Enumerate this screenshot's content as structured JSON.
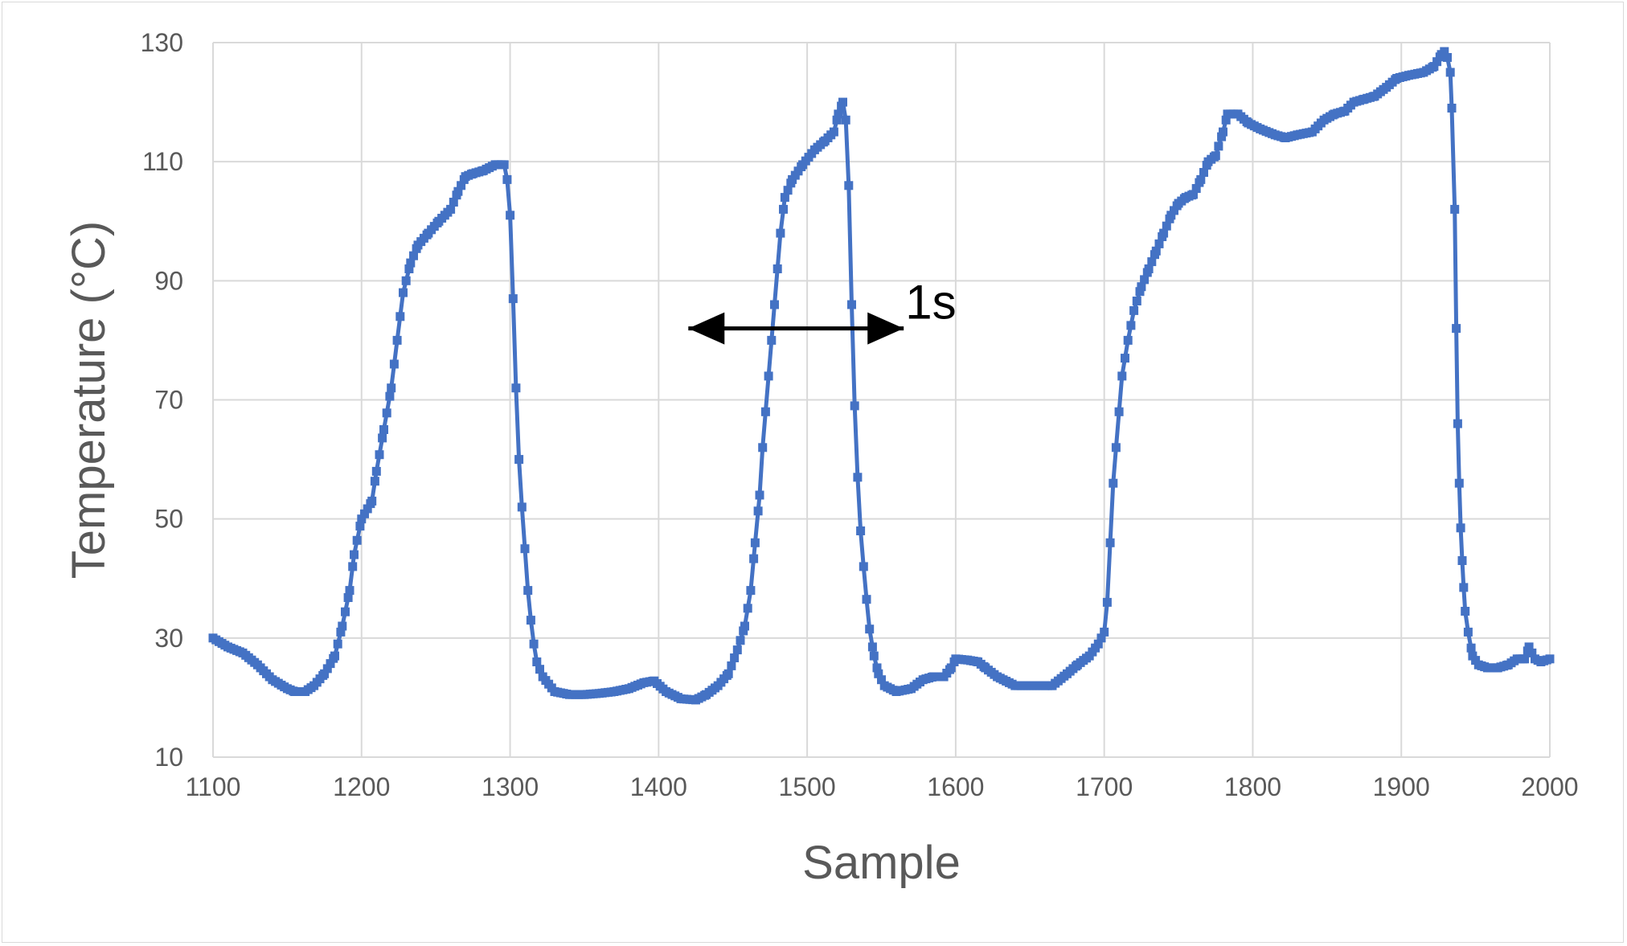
{
  "chart_data": {
    "type": "line",
    "xlabel": "Sample",
    "ylabel": "Temperature (°C)",
    "xlim": [
      1100,
      2000
    ],
    "ylim": [
      10,
      130
    ],
    "x_ticks": [
      "1100",
      "1200",
      "1300",
      "1400",
      "1500",
      "1600",
      "1700",
      "1800",
      "1900",
      "2000"
    ],
    "y_ticks": [
      "10",
      "30",
      "50",
      "70",
      "90",
      "110",
      "130"
    ],
    "grid": true,
    "legend": "none",
    "marker": "square",
    "series": [
      {
        "color": "#4472c4",
        "points": [
          [
            1100,
            30
          ],
          [
            1110,
            28.5
          ],
          [
            1120,
            27.5
          ],
          [
            1130,
            25.5
          ],
          [
            1140,
            23
          ],
          [
            1150,
            21.5
          ],
          [
            1155,
            21
          ],
          [
            1162,
            21
          ],
          [
            1168,
            22
          ],
          [
            1175,
            24
          ],
          [
            1182,
            27
          ],
          [
            1187,
            32
          ],
          [
            1192,
            38
          ],
          [
            1195,
            44
          ],
          [
            1200,
            50
          ],
          [
            1207,
            53
          ],
          [
            1210,
            58
          ],
          [
            1215,
            65
          ],
          [
            1220,
            72
          ],
          [
            1224,
            80
          ],
          [
            1228,
            88
          ],
          [
            1233,
            93
          ],
          [
            1238,
            96
          ],
          [
            1245,
            98
          ],
          [
            1252,
            100
          ],
          [
            1260,
            102
          ],
          [
            1265,
            105
          ],
          [
            1270,
            107.5
          ],
          [
            1275,
            108
          ],
          [
            1282,
            108.5
          ],
          [
            1290,
            109.5
          ],
          [
            1296,
            109.5
          ],
          [
            1298,
            107
          ],
          [
            1300,
            101
          ],
          [
            1302,
            87
          ],
          [
            1304,
            72
          ],
          [
            1306,
            60
          ],
          [
            1308,
            52
          ],
          [
            1310,
            45
          ],
          [
            1312,
            38
          ],
          [
            1314,
            33
          ],
          [
            1316,
            29
          ],
          [
            1318,
            26
          ],
          [
            1322,
            23.5
          ],
          [
            1330,
            21
          ],
          [
            1340,
            20.5
          ],
          [
            1350,
            20.5
          ],
          [
            1360,
            20.7
          ],
          [
            1370,
            21
          ],
          [
            1380,
            21.5
          ],
          [
            1390,
            22.5
          ],
          [
            1397,
            22.8
          ],
          [
            1405,
            21
          ],
          [
            1415,
            19.8
          ],
          [
            1425,
            19.6
          ],
          [
            1432,
            20.5
          ],
          [
            1440,
            22
          ],
          [
            1447,
            24
          ],
          [
            1453,
            28
          ],
          [
            1458,
            32
          ],
          [
            1462,
            38
          ],
          [
            1465,
            46
          ],
          [
            1468,
            54
          ],
          [
            1470,
            62
          ],
          [
            1472,
            68
          ],
          [
            1474,
            74
          ],
          [
            1476,
            80
          ],
          [
            1478,
            86
          ],
          [
            1480,
            92
          ],
          [
            1482,
            98
          ],
          [
            1485,
            104
          ],
          [
            1490,
            107
          ],
          [
            1497,
            109.5
          ],
          [
            1505,
            112
          ],
          [
            1512,
            113.5
          ],
          [
            1518,
            115
          ],
          [
            1521,
            118
          ],
          [
            1524,
            120
          ],
          [
            1526,
            117
          ],
          [
            1528,
            106
          ],
          [
            1530,
            86
          ],
          [
            1532,
            69
          ],
          [
            1534,
            57
          ],
          [
            1536,
            48
          ],
          [
            1538,
            42
          ],
          [
            1540,
            36.5
          ],
          [
            1542,
            31.5
          ],
          [
            1545,
            27
          ],
          [
            1548,
            24
          ],
          [
            1552,
            22
          ],
          [
            1560,
            21
          ],
          [
            1570,
            21.5
          ],
          [
            1578,
            23
          ],
          [
            1585,
            23.5
          ],
          [
            1592,
            23.5
          ],
          [
            1597,
            25
          ],
          [
            1600,
            26.5
          ],
          [
            1608,
            26.3
          ],
          [
            1615,
            26
          ],
          [
            1620,
            25
          ],
          [
            1628,
            23.5
          ],
          [
            1640,
            22
          ],
          [
            1652,
            22
          ],
          [
            1665,
            22
          ],
          [
            1675,
            24
          ],
          [
            1682,
            25.5
          ],
          [
            1690,
            27
          ],
          [
            1696,
            29
          ],
          [
            1700,
            31
          ],
          [
            1702,
            36
          ],
          [
            1704,
            46
          ],
          [
            1706,
            56
          ],
          [
            1708,
            62
          ],
          [
            1710,
            68
          ],
          [
            1712,
            74
          ],
          [
            1716,
            80
          ],
          [
            1720,
            85
          ],
          [
            1725,
            89
          ],
          [
            1730,
            92
          ],
          [
            1735,
            95
          ],
          [
            1740,
            98
          ],
          [
            1745,
            101
          ],
          [
            1750,
            103
          ],
          [
            1755,
            104
          ],
          [
            1760,
            104.5
          ],
          [
            1765,
            107
          ],
          [
            1770,
            110
          ],
          [
            1775,
            111
          ],
          [
            1780,
            115
          ],
          [
            1783,
            118
          ],
          [
            1790,
            118
          ],
          [
            1797,
            116.5
          ],
          [
            1805,
            115.5
          ],
          [
            1815,
            114.5
          ],
          [
            1822,
            114
          ],
          [
            1830,
            114.5
          ],
          [
            1840,
            115
          ],
          [
            1848,
            117
          ],
          [
            1855,
            118
          ],
          [
            1862,
            118.5
          ],
          [
            1868,
            120
          ],
          [
            1875,
            120.5
          ],
          [
            1882,
            121
          ],
          [
            1890,
            122.5
          ],
          [
            1897,
            124
          ],
          [
            1905,
            124.5
          ],
          [
            1915,
            125
          ],
          [
            1922,
            126
          ],
          [
            1927,
            128
          ],
          [
            1929,
            128.5
          ],
          [
            1931,
            127.5
          ],
          [
            1933,
            125
          ],
          [
            1934,
            119
          ],
          [
            1936,
            102
          ],
          [
            1937,
            82
          ],
          [
            1938,
            66
          ],
          [
            1939,
            56
          ],
          [
            1940,
            48.5
          ],
          [
            1941,
            43
          ],
          [
            1942,
            38.5
          ],
          [
            1943,
            34.5
          ],
          [
            1945,
            31
          ],
          [
            1948,
            27
          ],
          [
            1952,
            25.5
          ],
          [
            1958,
            25
          ],
          [
            1965,
            25
          ],
          [
            1972,
            25.5
          ],
          [
            1978,
            26.5
          ],
          [
            1983,
            26.5
          ],
          [
            1986,
            28.5
          ],
          [
            1990,
            26.5
          ],
          [
            1994,
            26
          ],
          [
            2000,
            26.5
          ]
        ]
      }
    ],
    "annotations": [
      {
        "text": "1s",
        "arrow_from_x": 1420,
        "arrow_to_x": 1565,
        "y": 82
      }
    ]
  }
}
